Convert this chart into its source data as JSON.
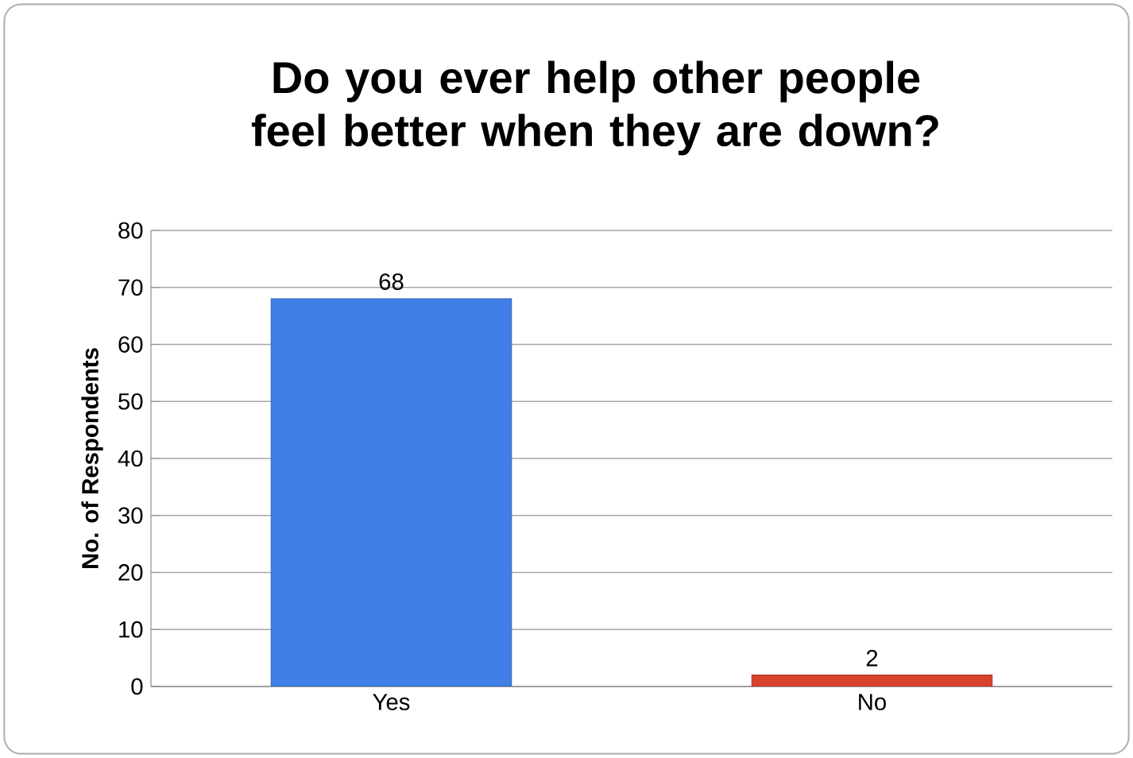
{
  "chart_data": {
    "type": "bar",
    "title": "Do you ever help other people feel better when they are down?",
    "ylabel": "No. of Respondents",
    "categories": [
      "Yes",
      "No"
    ],
    "values": [
      68,
      2
    ],
    "colors": [
      "#3f7fe6",
      "#d9432b"
    ],
    "ylim": [
      0,
      80
    ],
    "yticks": [
      0,
      10,
      20,
      30,
      40,
      50,
      60,
      70,
      80
    ],
    "grid": "y",
    "data_labels": true
  }
}
